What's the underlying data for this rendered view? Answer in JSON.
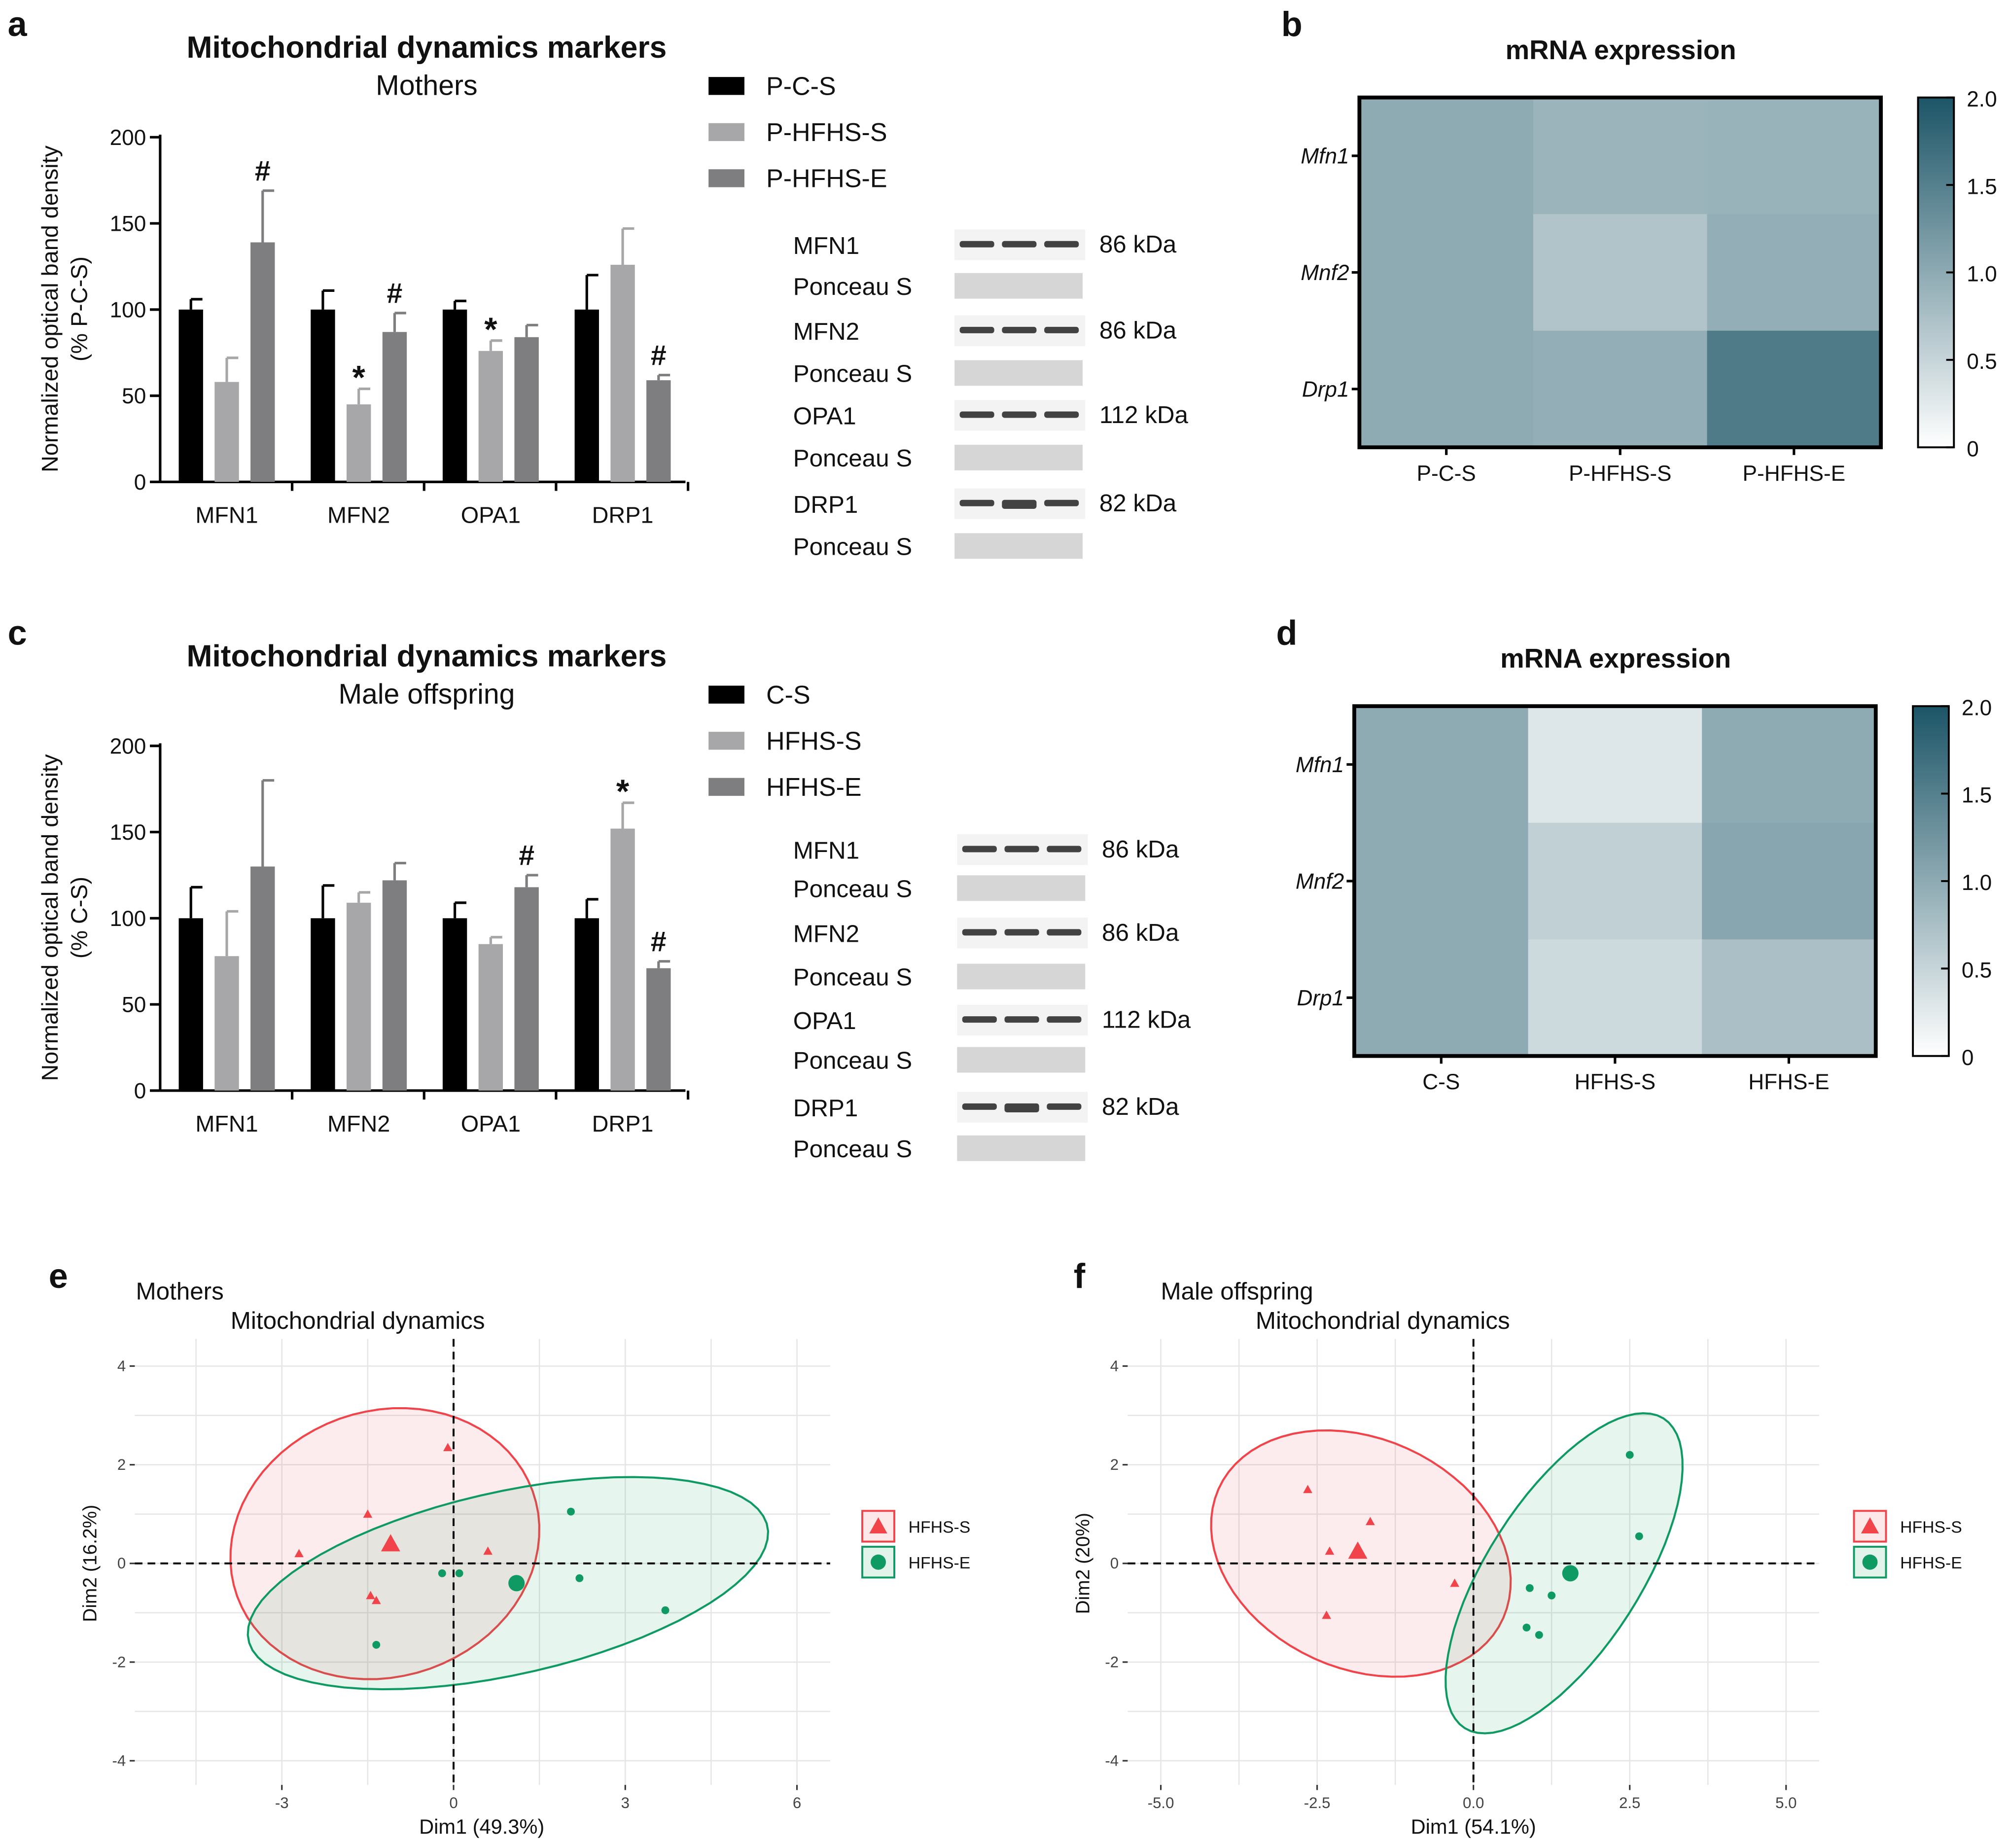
{
  "colors": {
    "black": "#000000",
    "light_gray": "#a7a7aa",
    "dark_gray": "#7e7e80",
    "heat_low": "#ffffff",
    "heat_high": "#1c5567",
    "red": "#f0444a",
    "green": "#0f9a63"
  },
  "chart_data": [
    {
      "id": "a",
      "type": "bar",
      "letter": "a",
      "title": "Mitochondrial dynamics markers",
      "subtitle": "Mothers",
      "ylabel_line1": "Normalized optical band density",
      "ylabel_line2": "(% P-C-S)",
      "ylim": [
        0,
        200
      ],
      "yticks": [
        "200",
        "150",
        "100",
        "50",
        "0"
      ],
      "categories": [
        "MFN1",
        "MFN2",
        "OPA1",
        "DRP1"
      ],
      "series": [
        {
          "name": "P-C-S",
          "color": "#000000",
          "values": [
            100,
            100,
            100,
            100
          ],
          "errors": [
            6,
            11,
            5,
            20
          ],
          "marks": [
            "",
            "",
            "",
            ""
          ]
        },
        {
          "name": "P-HFHS-S",
          "color": "#a7a7aa",
          "values": [
            58,
            45,
            76,
            126
          ],
          "errors": [
            14,
            9,
            6,
            21
          ],
          "marks": [
            "",
            "*",
            "*",
            ""
          ]
        },
        {
          "name": "P-HFHS-E",
          "color": "#7e7e80",
          "values": [
            139,
            87,
            84,
            59
          ],
          "errors": [
            30,
            11,
            7,
            3
          ],
          "marks": [
            "#",
            "#",
            "",
            "#"
          ]
        }
      ],
      "blots": [
        {
          "protein": "MFN1",
          "size": "86 kDa",
          "loading": "Ponceau  S"
        },
        {
          "protein": "MFN2",
          "size": "86 kDa",
          "loading": "Ponceau  S"
        },
        {
          "protein": "OPA1",
          "size": "112 kDa",
          "loading": "Ponceau  S"
        },
        {
          "protein": "DRP1",
          "size": "82 kDa",
          "loading": "Ponceau  S"
        }
      ]
    },
    {
      "id": "b",
      "type": "heatmap",
      "letter": "b",
      "title": "mRNA expression",
      "rows": [
        "Mfn1",
        "Mnf2",
        "Drp1"
      ],
      "columns": [
        "P-C-S",
        "P-HFHS-S",
        "P-HFHS-E"
      ],
      "values": [
        [
          1.0,
          0.88,
          0.9
        ],
        [
          1.0,
          0.7,
          0.95
        ],
        [
          1.0,
          0.95,
          1.55
        ]
      ],
      "scale": [
        0,
        2.0
      ],
      "scale_ticks": [
        "2.0",
        "1.5",
        "1.0",
        "0.5",
        "0"
      ]
    },
    {
      "id": "c",
      "type": "bar",
      "letter": "c",
      "title": "Mitochondrial dynamics markers",
      "subtitle": "Male offspring",
      "ylabel_line1": "Normalized optical band density",
      "ylabel_line2": "(% C-S)",
      "ylim": [
        0,
        200
      ],
      "yticks": [
        "200",
        "150",
        "100",
        "50",
        "0"
      ],
      "categories": [
        "MFN1",
        "MFN2",
        "OPA1",
        "DRP1"
      ],
      "series": [
        {
          "name": "C-S",
          "color": "#000000",
          "values": [
            100,
            100,
            100,
            100
          ],
          "errors": [
            18,
            19,
            9,
            11
          ],
          "marks": [
            "",
            "",
            "",
            ""
          ]
        },
        {
          "name": "HFHS-S",
          "color": "#a7a7aa",
          "values": [
            78,
            109,
            85,
            152
          ],
          "errors": [
            26,
            6,
            4,
            15
          ],
          "marks": [
            "",
            "",
            "",
            "*"
          ]
        },
        {
          "name": "HFHS-E",
          "color": "#7e7e80",
          "values": [
            130,
            122,
            118,
            71
          ],
          "errors": [
            50,
            10,
            7,
            4
          ],
          "marks": [
            "",
            "",
            "#",
            "#"
          ]
        }
      ],
      "blots": [
        {
          "protein": "MFN1",
          "size": "86 kDa",
          "loading": "Ponceau  S"
        },
        {
          "protein": "MFN2",
          "size": "86 kDa",
          "loading": "Ponceau  S"
        },
        {
          "protein": "OPA1",
          "size": "112 kDa",
          "loading": "Ponceau  S"
        },
        {
          "protein": "DRP1",
          "size": "82 kDa",
          "loading": "Ponceau  S"
        }
      ]
    },
    {
      "id": "d",
      "type": "heatmap",
      "letter": "d",
      "title": "mRNA expression",
      "rows": [
        "Mfn1",
        "Mnf2",
        "Drp1"
      ],
      "columns": [
        "C-S",
        "HFHS-S",
        "HFHS-E"
      ],
      "values": [
        [
          1.0,
          0.3,
          1.0
        ],
        [
          1.0,
          0.55,
          1.05
        ],
        [
          1.0,
          0.45,
          0.75
        ]
      ],
      "scale": [
        0,
        2.0
      ],
      "scale_ticks": [
        "2.0",
        "1.5",
        "1.0",
        "0.5",
        "0"
      ]
    },
    {
      "id": "e",
      "type": "scatter",
      "letter": "e",
      "title_line1": "Mothers",
      "title_line2": "Mitochondrial dynamics",
      "xlabel": "Dim1 (49.3%)",
      "ylabel": "Dim2 (16.2%)",
      "xlim": [
        -5.57,
        6.58
      ],
      "ylim": [
        -4.49,
        4.55
      ],
      "xticks": [
        -3,
        0,
        3,
        6
      ],
      "xtick_labels": [
        "-3",
        "0",
        "3",
        "6"
      ],
      "yticks": [
        -4,
        -2,
        0,
        2,
        4
      ],
      "ytick_labels": [
        "-4",
        "-2",
        "0",
        "2",
        "4"
      ],
      "groups": [
        {
          "name": "HFHS-S",
          "shape": "triangle",
          "color": "#f0444a",
          "points": [
            [
              -0.1,
              2.35
            ],
            [
              -1.5,
              1.0
            ],
            [
              -2.7,
              0.2
            ],
            [
              0.6,
              0.25
            ],
            [
              -1.45,
              -0.65
            ],
            [
              -1.35,
              -0.75
            ]
          ],
          "centroid": [
            -1.1,
            0.4
          ],
          "ellipse": {
            "center": [
              -1.2,
              0.4
            ],
            "a": 2.86,
            "b": 2.58,
            "angle": 50
          }
        },
        {
          "name": "HFHS-E",
          "shape": "circle",
          "color": "#0f9a63",
          "points": [
            [
              2.05,
              1.05
            ],
            [
              -0.2,
              -0.2
            ],
            [
              0.1,
              -0.2
            ],
            [
              2.2,
              -0.3
            ],
            [
              3.7,
              -0.95
            ],
            [
              -1.35,
              -1.65
            ]
          ],
          "centroid": [
            1.1,
            -0.4
          ],
          "ellipse": {
            "center": [
              0.95,
              -0.4
            ],
            "a": 4.68,
            "b": 1.84,
            "angle": 15
          }
        }
      ]
    },
    {
      "id": "f",
      "type": "scatter",
      "letter": "f",
      "title_line1": "Male offspring",
      "title_line2": "Mitochondrial dynamics",
      "xlabel": "Dim1 (54.1%)",
      "ylabel": "Dim2 (20%)",
      "xlim": [
        -5.53,
        5.53
      ],
      "ylim": [
        -4.49,
        4.55
      ],
      "xticks": [
        -5,
        -2.5,
        0,
        2.5,
        5
      ],
      "xtick_labels": [
        "-5.0",
        "-2.5",
        "0.0",
        "2.5",
        "5.0"
      ],
      "yticks": [
        -4,
        -2,
        0,
        2,
        4
      ],
      "ytick_labels": [
        "-4",
        "-2",
        "0",
        "2",
        "4"
      ],
      "groups": [
        {
          "name": "HFHS-S",
          "shape": "triangle",
          "color": "#f0444a",
          "points": [
            [
              -2.65,
              1.5
            ],
            [
              -1.65,
              0.85
            ],
            [
              -2.3,
              0.25
            ],
            [
              -0.3,
              -0.4
            ],
            [
              -2.35,
              -1.05
            ]
          ],
          "centroid": [
            -1.85,
            0.25
          ],
          "ellipse": {
            "center": [
              -1.8,
              0.2
            ],
            "a": 2.72,
            "b": 2.14,
            "angle": -50
          }
        },
        {
          "name": "HFHS-E",
          "shape": "circle",
          "color": "#0f9a63",
          "points": [
            [
              2.5,
              2.2
            ],
            [
              2.65,
              0.55
            ],
            [
              0.9,
              -0.5
            ],
            [
              1.25,
              -0.65
            ],
            [
              0.85,
              -1.3
            ],
            [
              1.05,
              -1.45
            ]
          ],
          "centroid": [
            1.55,
            -0.2
          ],
          "ellipse": {
            "center": [
              1.45,
              -0.2
            ],
            "a": 3.53,
            "b": 1.29,
            "angle": 65
          }
        }
      ]
    }
  ]
}
